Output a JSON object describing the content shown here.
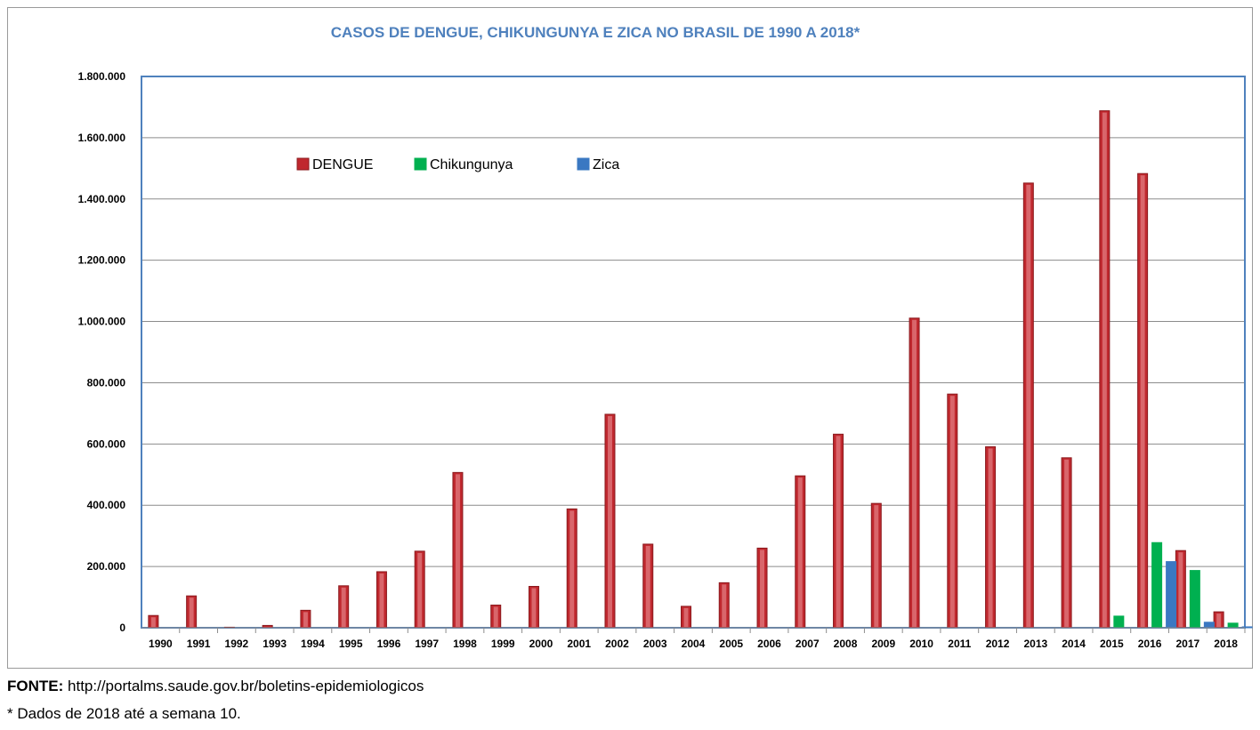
{
  "chart_data": {
    "type": "bar",
    "title": "CASOS DE DENGUE, CHIKUNGUNYA E ZICA NO BRASIL DE 1990 A 2018*",
    "categories": [
      "1990",
      "1991",
      "1992",
      "1993",
      "1994",
      "1995",
      "1996",
      "1997",
      "1998",
      "1999",
      "2000",
      "2001",
      "2002",
      "2003",
      "2004",
      "2005",
      "2006",
      "2007",
      "2008",
      "2009",
      "2010",
      "2011",
      "2012",
      "2013",
      "2014",
      "2015",
      "2016",
      "2017",
      "2018"
    ],
    "series": [
      {
        "name": "DENGUE",
        "color": "#c0282e",
        "values": [
          40000,
          104000,
          1700,
          7500,
          57000,
          137000,
          183000,
          250000,
          507000,
          74000,
          135000,
          388000,
          697000,
          273000,
          70000,
          147000,
          260000,
          496000,
          632000,
          406000,
          1011000,
          763000,
          591000,
          1452000,
          555000,
          1688000,
          1483000,
          252000,
          52000
        ]
      },
      {
        "name": "Chikungunya",
        "color": "#00b050",
        "values": [
          0,
          0,
          0,
          0,
          0,
          0,
          0,
          0,
          0,
          0,
          0,
          0,
          0,
          0,
          0,
          0,
          0,
          0,
          0,
          0,
          0,
          0,
          0,
          0,
          0,
          38000,
          278000,
          187000,
          15000
        ]
      },
      {
        "name": "Zica",
        "color": "#3a78c2",
        "values": [
          0,
          0,
          0,
          0,
          0,
          0,
          0,
          0,
          0,
          0,
          0,
          0,
          0,
          0,
          0,
          0,
          0,
          0,
          0,
          0,
          0,
          0,
          0,
          0,
          0,
          0,
          216000,
          18000,
          3000
        ]
      }
    ],
    "y_ticks": [
      "0",
      "200.000",
      "400.000",
      "600.000",
      "800.000",
      "1.000.000",
      "1.200.000",
      "1.400.000",
      "1.600.000",
      "1.800.000"
    ],
    "ylim": [
      0,
      1800000
    ],
    "grid": true,
    "legend_position": "top-left inside plot"
  },
  "footer": {
    "source_label": "FONTE:",
    "source_url": "http://portalms.saude.gov.br/boletins-epidemiologicos",
    "note": "* Dados de 2018 até a semana 10."
  }
}
